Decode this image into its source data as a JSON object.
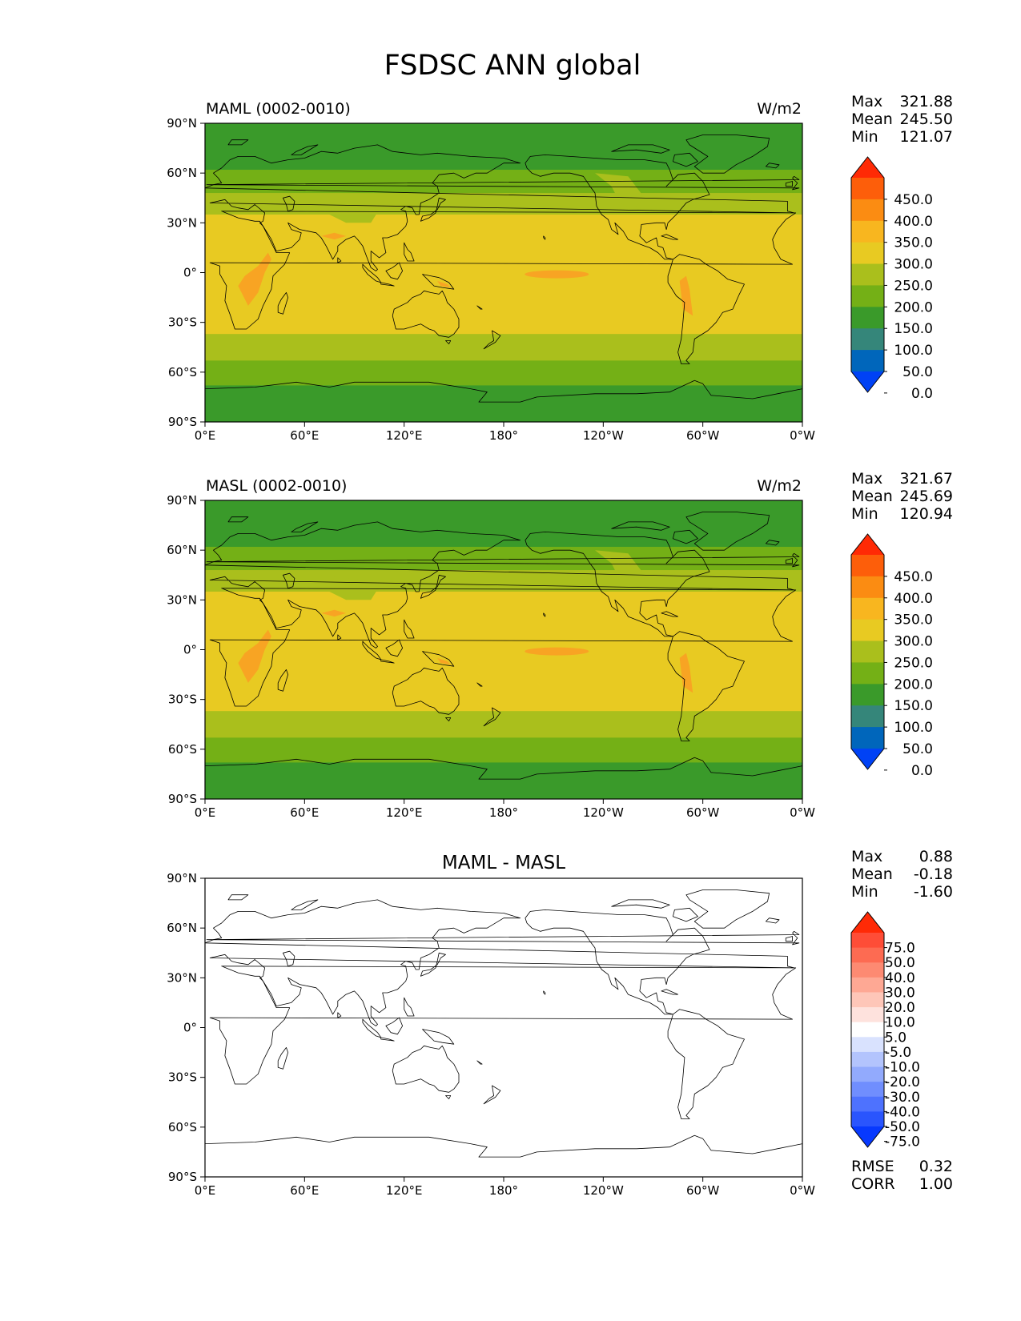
{
  "title": "FSDSC ANN global",
  "colors": {
    "main_levels": [
      "#0042f5",
      "#0066bb",
      "#35867a",
      "#3a9a2a",
      "#74b016",
      "#aabf1c",
      "#e8ca22",
      "#f8b61f",
      "#fb8c12",
      "#fd5e0a",
      "#ff2a05"
    ],
    "diff_levels": [
      "#0739fe",
      "#2a55fd",
      "#4e72fe",
      "#708efe",
      "#92aafd",
      "#b3c4fd",
      "#d9e2fe",
      "#ffffff",
      "#fee2dd",
      "#fec6b8",
      "#fea894",
      "#fd8a72",
      "#fd6b52",
      "#fe4d37",
      "#ff2a06"
    ],
    "coast": "#000000",
    "warm_patch": "#f8a423"
  },
  "chart_data": [
    {
      "type": "heatmap",
      "panel": "top",
      "left_title": "MAML (0002-0010)",
      "right_title": "W/m2",
      "stats": [
        {
          "label": "Max",
          "value": "321.88"
        },
        {
          "label": "Mean",
          "value": "245.50"
        },
        {
          "label": "Min",
          "value": "121.07"
        }
      ],
      "colorbar_levels": [
        0,
        50,
        100,
        150,
        200,
        250,
        300,
        350,
        400,
        450
      ],
      "colorbar_tick_labels": [
        "450.0",
        "400.0",
        "350.0",
        "300.0",
        "250.0",
        "200.0",
        "150.0",
        "100.0",
        "50.0",
        "0.0"
      ],
      "x_tick_labels": [
        "0°E",
        "60°E",
        "120°E",
        "180°",
        "120°W",
        "60°W",
        "0°W"
      ],
      "y_tick_labels": [
        "90°N",
        "60°N",
        "30°N",
        "0°",
        "30°S",
        "60°S",
        "90°S"
      ],
      "xlim": [
        0,
        360
      ],
      "ylim": [
        -90,
        90
      ],
      "zonal_bands": [
        {
          "lat": [
            62,
            90
          ],
          "value": 125
        },
        {
          "lat": [
            48,
            62
          ],
          "value": 175
        },
        {
          "lat": [
            35,
            48
          ],
          "value": 225
        },
        {
          "lat": [
            -37,
            35
          ],
          "value": 275
        },
        {
          "lat": [
            -53,
            -37
          ],
          "value": 225
        },
        {
          "lat": [
            -68,
            -53
          ],
          "value": 175
        },
        {
          "lat": [
            -90,
            -68
          ],
          "value": 125
        }
      ]
    },
    {
      "type": "heatmap",
      "panel": "middle",
      "left_title": "MASL (0002-0010)",
      "right_title": "W/m2",
      "stats": [
        {
          "label": "Max",
          "value": "321.67"
        },
        {
          "label": "Mean",
          "value": "245.69"
        },
        {
          "label": "Min",
          "value": "120.94"
        }
      ],
      "colorbar_levels": [
        0,
        50,
        100,
        150,
        200,
        250,
        300,
        350,
        400,
        450
      ],
      "colorbar_tick_labels": [
        "450.0",
        "400.0",
        "350.0",
        "300.0",
        "250.0",
        "200.0",
        "150.0",
        "100.0",
        "50.0",
        "0.0"
      ],
      "x_tick_labels": [
        "0°E",
        "60°E",
        "120°E",
        "180°",
        "120°W",
        "60°W",
        "0°W"
      ],
      "y_tick_labels": [
        "90°N",
        "60°N",
        "30°N",
        "0°",
        "30°S",
        "60°S",
        "90°S"
      ],
      "xlim": [
        0,
        360
      ],
      "ylim": [
        -90,
        90
      ],
      "zonal_bands": [
        {
          "lat": [
            62,
            90
          ],
          "value": 125
        },
        {
          "lat": [
            48,
            62
          ],
          "value": 175
        },
        {
          "lat": [
            35,
            48
          ],
          "value": 225
        },
        {
          "lat": [
            -37,
            35
          ],
          "value": 275
        },
        {
          "lat": [
            -53,
            -37
          ],
          "value": 225
        },
        {
          "lat": [
            -68,
            -53
          ],
          "value": 175
        },
        {
          "lat": [
            -90,
            -68
          ],
          "value": 125
        }
      ]
    },
    {
      "type": "heatmap",
      "panel": "bottom",
      "center_title": "MAML - MASL",
      "stats": [
        {
          "label": "Max",
          "value": "0.88"
        },
        {
          "label": "Mean",
          "value": "-0.18"
        },
        {
          "label": "Min",
          "value": "-1.60"
        }
      ],
      "colorbar_levels": [
        -75,
        -50,
        -40,
        -30,
        -20,
        -10,
        -5,
        5,
        10,
        20,
        30,
        40,
        50,
        75
      ],
      "colorbar_tick_labels": [
        "75.0",
        "50.0",
        "40.0",
        "30.0",
        "20.0",
        "10.0",
        "5.0",
        "-5.0",
        "-10.0",
        "-20.0",
        "-30.0",
        "-40.0",
        "-50.0",
        "-75.0"
      ],
      "x_tick_labels": [
        "0°E",
        "60°E",
        "120°E",
        "180°",
        "120°W",
        "60°W",
        "0°W"
      ],
      "y_tick_labels": [
        "90°N",
        "60°N",
        "30°N",
        "0°",
        "30°S",
        "60°S",
        "90°S"
      ],
      "xlim": [
        0,
        360
      ],
      "ylim": [
        -90,
        90
      ],
      "metrics": [
        {
          "label": "RMSE",
          "value": "0.32"
        },
        {
          "label": "CORR",
          "value": "1.00"
        }
      ]
    }
  ]
}
